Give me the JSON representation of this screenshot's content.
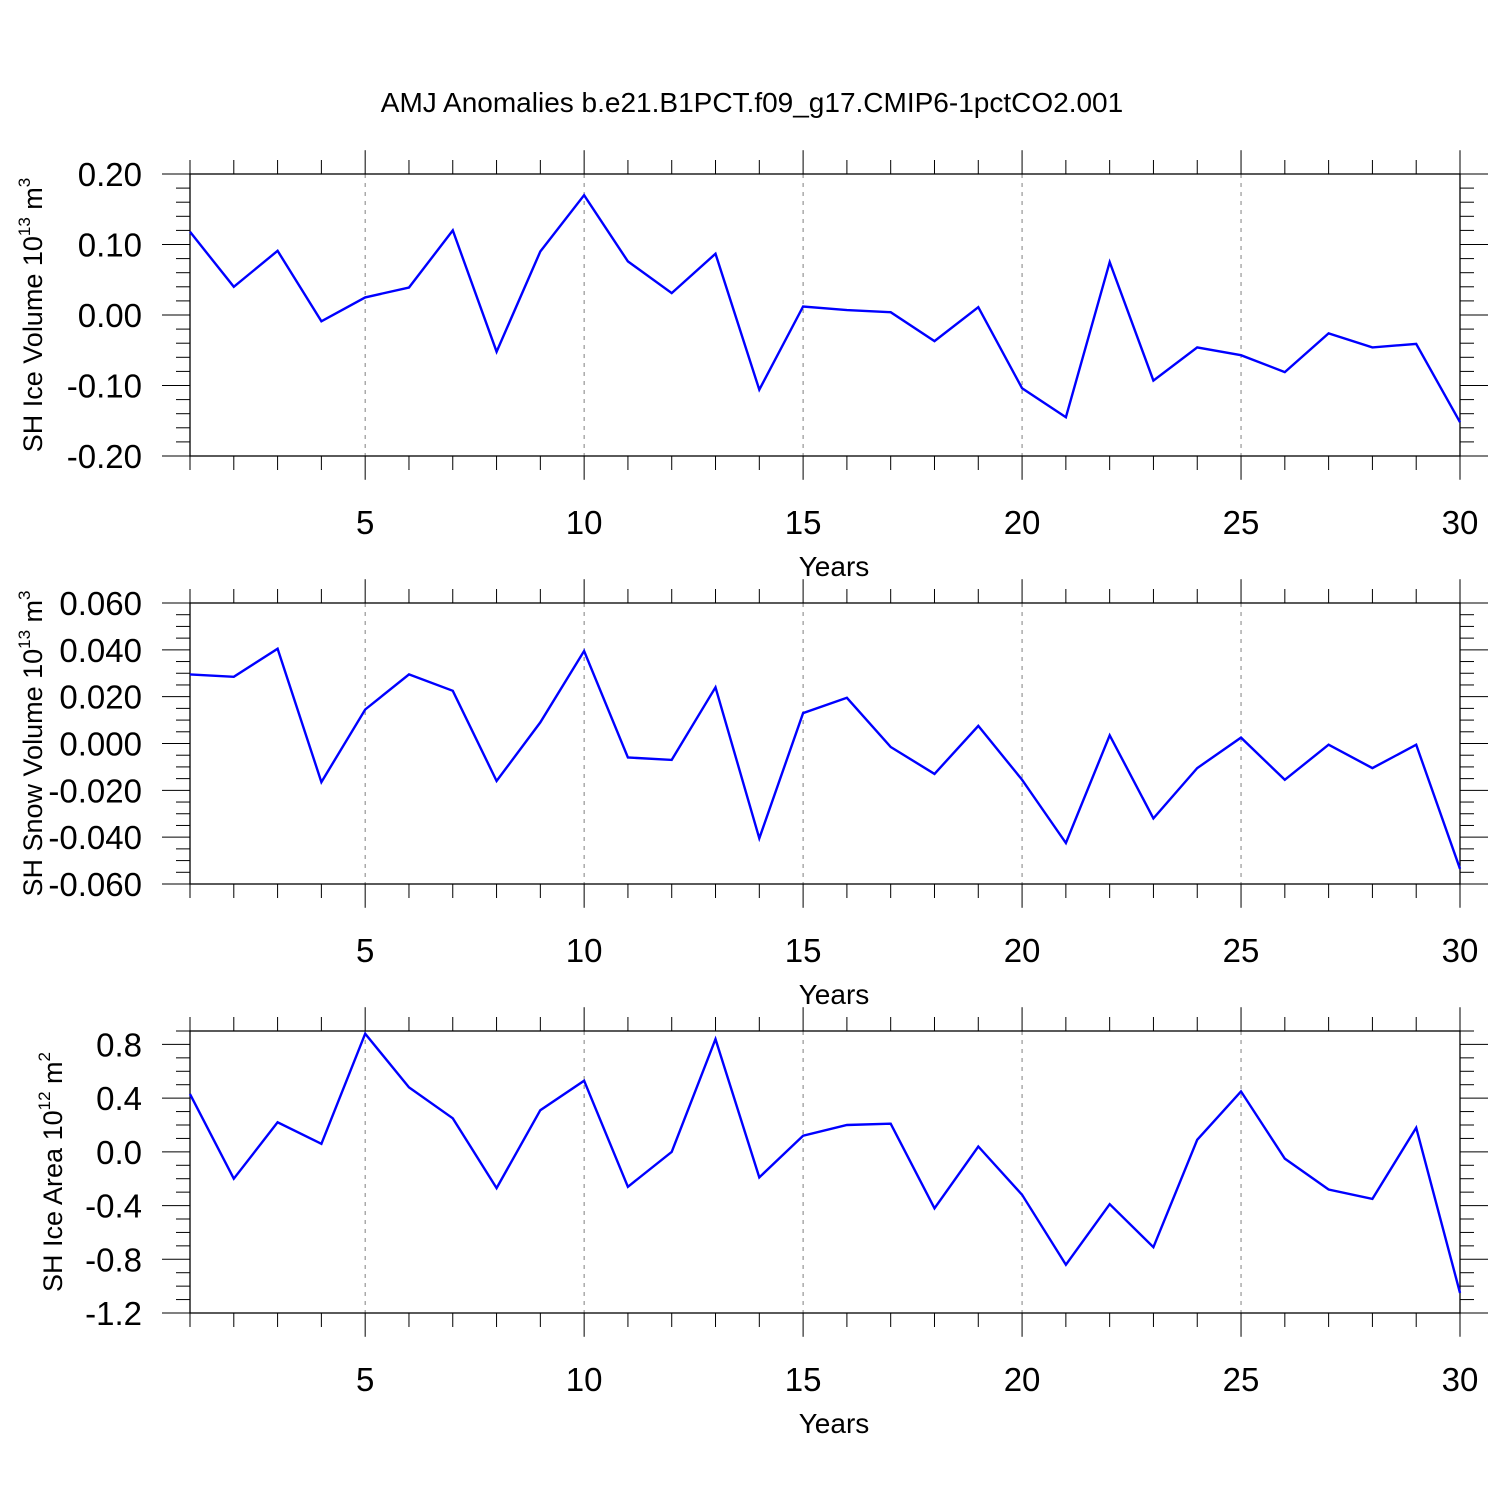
{
  "figure": {
    "title": "AMJ Anomalies b.e21.B1PCT.f09_g17.CMIP6-1pctCO2.001",
    "line_color": "#0000ff"
  },
  "chart_data": [
    {
      "type": "line",
      "ylabel": {
        "text": "SH Ice Volume 10",
        "exponent": "13",
        "unit": "m",
        "unit_exponent": "3"
      },
      "xlabel": "Years",
      "xlim": [
        1,
        30
      ],
      "ylim": [
        -0.2,
        0.2
      ],
      "x_ticks": [
        5,
        10,
        15,
        20,
        25,
        30
      ],
      "y_ticks": [
        -0.2,
        -0.1,
        0.0,
        0.1,
        0.2
      ],
      "y_tick_labels": [
        "-0.20",
        "-0.10",
        "0.00",
        "0.10",
        "0.20"
      ],
      "grid": "vertical dashed at major x ticks",
      "x": [
        1,
        2,
        3,
        4,
        5,
        6,
        7,
        8,
        9,
        10,
        11,
        12,
        13,
        14,
        15,
        16,
        17,
        18,
        19,
        20,
        21,
        22,
        23,
        24,
        25,
        26,
        27,
        28,
        29,
        30
      ],
      "values": [
        0.118,
        0.04,
        0.091,
        -0.009,
        0.025,
        0.039,
        0.12,
        -0.052,
        0.09,
        0.17,
        0.076,
        0.031,
        0.087,
        -0.106,
        0.012,
        0.007,
        0.004,
        -0.037,
        0.011,
        -0.104,
        -0.145,
        0.075,
        -0.093,
        -0.046,
        -0.057,
        -0.081,
        -0.026,
        -0.046,
        -0.041,
        -0.152
      ]
    },
    {
      "type": "line",
      "ylabel": {
        "text": "SH Snow Volume 10",
        "exponent": "13",
        "unit": "m",
        "unit_exponent": "3"
      },
      "xlabel": "Years",
      "xlim": [
        1,
        30
      ],
      "ylim": [
        -0.06,
        0.06
      ],
      "x_ticks": [
        5,
        10,
        15,
        20,
        25,
        30
      ],
      "y_ticks": [
        -0.06,
        -0.04,
        -0.02,
        0.0,
        0.02,
        0.04,
        0.06
      ],
      "y_tick_labels": [
        "-0.060",
        "-0.040",
        "-0.020",
        "0.000",
        "0.020",
        "0.040",
        "0.060"
      ],
      "grid": "vertical dashed at major x ticks",
      "x": [
        1,
        2,
        3,
        4,
        5,
        6,
        7,
        8,
        9,
        10,
        11,
        12,
        13,
        14,
        15,
        16,
        17,
        18,
        19,
        20,
        21,
        22,
        23,
        24,
        25,
        26,
        27,
        28,
        29,
        30
      ],
      "values": [
        0.0295,
        0.0285,
        0.0405,
        -0.0165,
        0.0145,
        0.0295,
        0.0225,
        -0.016,
        0.009,
        0.0395,
        -0.006,
        -0.007,
        0.024,
        -0.0405,
        0.013,
        0.0195,
        -0.0015,
        -0.013,
        0.0075,
        -0.0155,
        -0.0425,
        0.0035,
        -0.032,
        -0.0105,
        0.0025,
        -0.0155,
        -0.0005,
        -0.0105,
        -0.0005,
        -0.0535
      ]
    },
    {
      "type": "line",
      "ylabel": {
        "text": "SH Ice Area 10",
        "exponent": "12",
        "unit": "m",
        "unit_exponent": "2"
      },
      "xlabel": "Years",
      "xlim": [
        1,
        30
      ],
      "ylim": [
        -1.2,
        0.9
      ],
      "x_ticks": [
        5,
        10,
        15,
        20,
        25,
        30
      ],
      "y_ticks": [
        -1.2,
        -0.8,
        -0.4,
        0.0,
        0.4,
        0.8
      ],
      "y_tick_labels": [
        "-1.2",
        "-0.8",
        "-0.4",
        "0.0",
        "0.4",
        "0.8"
      ],
      "grid": "vertical dashed at major x ticks",
      "x": [
        1,
        2,
        3,
        4,
        5,
        6,
        7,
        8,
        9,
        10,
        11,
        12,
        13,
        14,
        15,
        16,
        17,
        18,
        19,
        20,
        21,
        22,
        23,
        24,
        25,
        26,
        27,
        28,
        29,
        30
      ],
      "values": [
        0.43,
        -0.2,
        0.22,
        0.06,
        0.88,
        0.48,
        0.25,
        -0.27,
        0.31,
        0.53,
        -0.26,
        0.0,
        0.84,
        -0.19,
        0.12,
        0.2,
        0.21,
        -0.42,
        0.04,
        -0.32,
        -0.84,
        -0.39,
        -0.71,
        0.09,
        0.45,
        -0.05,
        -0.28,
        -0.35,
        0.18,
        -1.05
      ]
    }
  ]
}
